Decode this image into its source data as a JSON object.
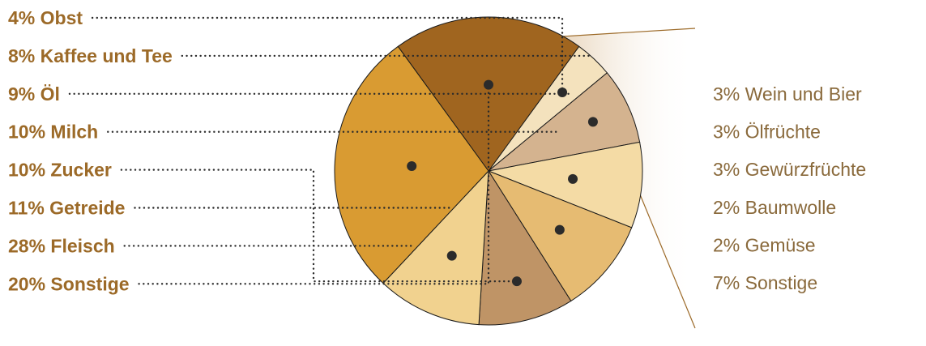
{
  "colors": {
    "label_brown": "#9c6a28",
    "right_text": "#8a6a3c",
    "outline": "#1a1a1a",
    "dot": "#2b2b2b"
  },
  "chart_data": {
    "type": "pie",
    "title": "",
    "series": [
      {
        "label": "4% Obst",
        "value": 4,
        "color": "#f4e2bd"
      },
      {
        "label": "8% Kaffee und Tee",
        "value": 8,
        "color": "#d4b38f"
      },
      {
        "label": "9% Öl",
        "value": 9,
        "color": "#f4dba5"
      },
      {
        "label": "10% Milch",
        "value": 10,
        "color": "#e6bb72"
      },
      {
        "label": "10% Zucker",
        "value": 10,
        "color": "#bf9466"
      },
      {
        "label": "11% Getreide",
        "value": 11,
        "color": "#f1d28f"
      },
      {
        "label": "28% Fleisch",
        "value": 28,
        "color": "#d99b32"
      },
      {
        "label": "20% Sonstige",
        "value": 20,
        "color": "#a0651f"
      }
    ],
    "breakdown": {
      "of": "20% Sonstige",
      "items": [
        {
          "label": "3% Wein und Bier",
          "value": 3
        },
        {
          "label": "3% Ölfrüchte",
          "value": 3
        },
        {
          "label": "3% Gewürzfrüchte",
          "value": 3
        },
        {
          "label": "2% Baumwolle",
          "value": 2
        },
        {
          "label": "2% Gemüse",
          "value": 2
        },
        {
          "label": "7% Sonstige",
          "value": 7
        }
      ]
    }
  }
}
